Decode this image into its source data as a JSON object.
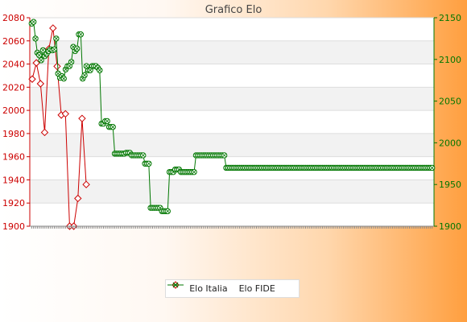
{
  "chart_data": {
    "type": "line",
    "title": "Grafico Elo",
    "axes": {
      "left": {
        "range": [
          1900,
          2080
        ],
        "ticks": [
          "1900",
          "1920",
          "1940",
          "1960",
          "1980",
          "2000",
          "2020",
          "2040",
          "2060",
          "2080"
        ],
        "color": "#cc0000"
      },
      "right": {
        "range": [
          1900,
          2150
        ],
        "ticks": [
          "1900",
          "1950",
          "2000",
          "2050",
          "2100",
          "2150"
        ],
        "color": "#007700"
      }
    },
    "grid": true,
    "legend_position": "bottom-center",
    "series": [
      {
        "name": "Elo Italia",
        "axis": "left",
        "color": "#cc0000",
        "marker": "diamond",
        "values": [
          2027,
          2041,
          2023,
          1981,
          2053,
          2071,
          2038,
          1996,
          1997,
          1900,
          1900,
          1924,
          1993,
          1936
        ]
      },
      {
        "name": "Elo FIDE",
        "axis": "right",
        "color": "#007700",
        "marker": "x-circle",
        "values": [
          2143,
          2145,
          2125,
          2108,
          2105,
          2099,
          2111,
          2104,
          2107,
          2110,
          2112,
          2111,
          2112,
          2125,
          2083,
          2078,
          2080,
          2077,
          2088,
          2092,
          2092,
          2097,
          2115,
          2110,
          2113,
          2130,
          2130,
          2077,
          2081,
          2092,
          2087,
          2087,
          2092,
          2092,
          2092,
          2090,
          2087,
          2023,
          2023,
          2026,
          2026,
          2019,
          2019,
          2019,
          1987,
          1987,
          1987,
          1987,
          1987,
          1987,
          1988,
          1988,
          1988,
          1985,
          1985,
          1985,
          1985,
          1985,
          1985,
          1985,
          1975,
          1975,
          1975,
          1922,
          1922,
          1922,
          1922,
          1922,
          1922,
          1918,
          1918,
          1918,
          1918,
          1965,
          1965,
          1965,
          1968,
          1968,
          1968,
          1965,
          1965,
          1965,
          1965,
          1965,
          1965,
          1965,
          1965,
          1985,
          1985,
          1985,
          1985,
          1985,
          1985,
          1985,
          1985,
          1985,
          1985,
          1985,
          1985,
          1985,
          1985,
          1985,
          1985,
          1970,
          1970,
          1970,
          1970,
          1970,
          1970,
          1970,
          1970,
          1970,
          1970,
          1970,
          1970,
          1970,
          1970,
          1970,
          1970,
          1970,
          1970,
          1970,
          1970,
          1970,
          1970,
          1970,
          1970,
          1970,
          1970,
          1970,
          1970,
          1970,
          1970,
          1970,
          1970,
          1970,
          1970,
          1970,
          1970,
          1970,
          1970,
          1970,
          1970,
          1970,
          1970,
          1970,
          1970,
          1970,
          1970,
          1970,
          1970,
          1970,
          1970,
          1970,
          1970,
          1970,
          1970,
          1970,
          1970,
          1970,
          1970,
          1970,
          1970,
          1970,
          1970,
          1970,
          1970,
          1970,
          1970,
          1970,
          1970,
          1970,
          1970,
          1970,
          1970,
          1970,
          1970,
          1970,
          1970,
          1970,
          1970,
          1970,
          1970,
          1970,
          1970,
          1970,
          1970,
          1970,
          1970,
          1970,
          1970,
          1970,
          1970,
          1970,
          1970,
          1970,
          1970,
          1970,
          1970,
          1970,
          1970,
          1970,
          1970,
          1970,
          1970,
          1970,
          1970,
          1970,
          1970,
          1970,
          1970,
          1970,
          1970
        ]
      }
    ]
  }
}
